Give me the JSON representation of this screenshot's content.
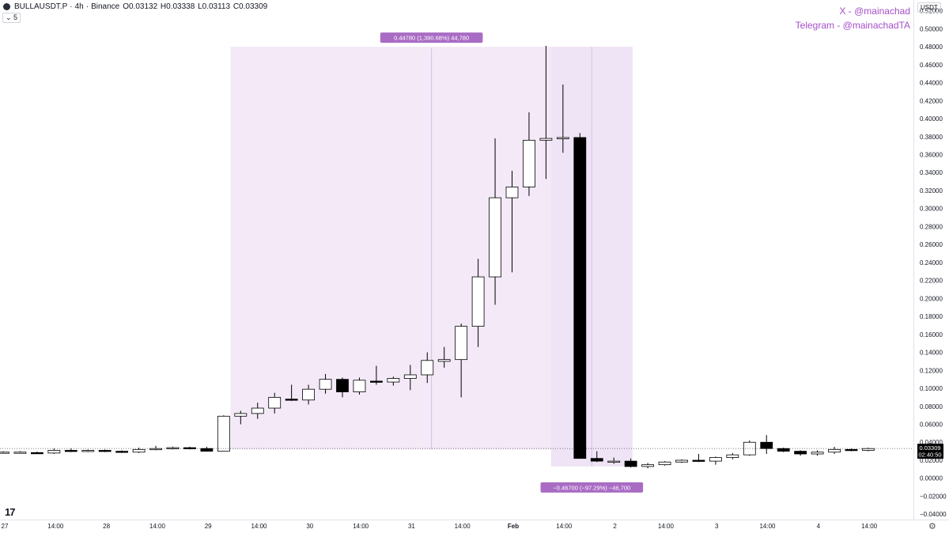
{
  "header": {
    "symbol": "BULLAUSDT.P",
    "interval": "4h",
    "exchange": "Binance",
    "open": "O0.03132",
    "high": "H0.03338",
    "low": "L0.03113",
    "close": "C0.03309",
    "collapse_label": "5"
  },
  "watermarks": {
    "x_handle": "X - @mainachad",
    "telegram": "Telegram - @mainachadTA"
  },
  "currency_label": "USDT",
  "price_tag": {
    "price": "0.03309",
    "countdown": "02:40:50"
  },
  "measure_up": {
    "label": "0.44780 (1,390.68%) 44,780"
  },
  "measure_down": {
    "label": "−0.46700 (−97.29%) −46,700"
  },
  "colors": {
    "up_body": "#ffffff",
    "down_body": "#000000",
    "wick": "#000000",
    "measure_fill": "#f3e9f7",
    "measure_tag": "#a96cc4",
    "credit": "#a44ec9"
  },
  "chart_data": {
    "type": "candlestick",
    "title": "BULLAUSDT.P · 4h · Binance",
    "ylabel": "USDT",
    "ylim": [
      -0.046,
      0.532
    ],
    "y_ticks": [
      "0.52000",
      "0.50000",
      "0.48000",
      "0.46000",
      "0.44000",
      "0.42000",
      "0.40000",
      "0.38000",
      "0.36000",
      "0.34000",
      "0.32000",
      "0.30000",
      "0.28000",
      "0.26000",
      "0.24000",
      "0.22000",
      "0.20000",
      "0.18000",
      "0.16000",
      "0.14000",
      "0.12000",
      "0.10000",
      "0.08000",
      "0.06000",
      "0.04000",
      "0.02000",
      "0.00000",
      "−0.02000",
      "−0.04000"
    ],
    "x_ticks": [
      "27",
      "14:00",
      "28",
      "14:00",
      "29",
      "14:00",
      "30",
      "14:00",
      "31",
      "14:00",
      "Feb",
      "14:00",
      "2",
      "14:00",
      "3",
      "14:00",
      "4",
      "14:00"
    ],
    "candles": [
      [
        0.029,
        0.03,
        0.028,
        0.029
      ],
      [
        0.029,
        0.03,
        0.028,
        0.029
      ],
      [
        0.0285,
        0.0295,
        0.027,
        0.028
      ],
      [
        0.028,
        0.033,
        0.027,
        0.031
      ],
      [
        0.031,
        0.033,
        0.029,
        0.03
      ],
      [
        0.03,
        0.032,
        0.029,
        0.031
      ],
      [
        0.031,
        0.032,
        0.029,
        0.03
      ],
      [
        0.03,
        0.031,
        0.028,
        0.029
      ],
      [
        0.029,
        0.034,
        0.028,
        0.032
      ],
      [
        0.032,
        0.036,
        0.031,
        0.033
      ],
      [
        0.033,
        0.035,
        0.032,
        0.034
      ],
      [
        0.034,
        0.035,
        0.032,
        0.033
      ],
      [
        0.033,
        0.035,
        0.03,
        0.03
      ],
      [
        0.03,
        0.07,
        0.03,
        0.069
      ],
      [
        0.069,
        0.075,
        0.06,
        0.072
      ],
      [
        0.072,
        0.084,
        0.066,
        0.078
      ],
      [
        0.078,
        0.095,
        0.072,
        0.09
      ],
      [
        0.088,
        0.104,
        0.086,
        0.087
      ],
      [
        0.087,
        0.104,
        0.082,
        0.099
      ],
      [
        0.099,
        0.116,
        0.094,
        0.11
      ],
      [
        0.11,
        0.112,
        0.09,
        0.096
      ],
      [
        0.096,
        0.112,
        0.093,
        0.109
      ],
      [
        0.108,
        0.125,
        0.104,
        0.107
      ],
      [
        0.107,
        0.113,
        0.103,
        0.111
      ],
      [
        0.111,
        0.126,
        0.098,
        0.115
      ],
      [
        0.115,
        0.14,
        0.106,
        0.131
      ],
      [
        0.13,
        0.146,
        0.123,
        0.132
      ],
      [
        0.132,
        0.172,
        0.09,
        0.169
      ],
      [
        0.169,
        0.244,
        0.146,
        0.224
      ],
      [
        0.224,
        0.378,
        0.193,
        0.312
      ],
      [
        0.312,
        0.342,
        0.229,
        0.324
      ],
      [
        0.324,
        0.407,
        0.314,
        0.376
      ],
      [
        0.376,
        0.481,
        0.333,
        0.378
      ],
      [
        0.378,
        0.438,
        0.362,
        0.379
      ],
      [
        0.379,
        0.384,
        0.022,
        0.022
      ],
      [
        0.022,
        0.03,
        0.018,
        0.019
      ],
      [
        0.019,
        0.023,
        0.016,
        0.019
      ],
      [
        0.019,
        0.022,
        0.012,
        0.013
      ],
      [
        0.013,
        0.017,
        0.011,
        0.015
      ],
      [
        0.015,
        0.019,
        0.014,
        0.018
      ],
      [
        0.018,
        0.021,
        0.017,
        0.02
      ],
      [
        0.02,
        0.027,
        0.018,
        0.019
      ],
      [
        0.019,
        0.024,
        0.015,
        0.023
      ],
      [
        0.023,
        0.028,
        0.021,
        0.026
      ],
      [
        0.026,
        0.042,
        0.025,
        0.04
      ],
      [
        0.04,
        0.048,
        0.027,
        0.033
      ],
      [
        0.033,
        0.034,
        0.029,
        0.03
      ],
      [
        0.03,
        0.031,
        0.025,
        0.027
      ],
      [
        0.027,
        0.031,
        0.025,
        0.029
      ],
      [
        0.029,
        0.035,
        0.027,
        0.032
      ],
      [
        0.032,
        0.033,
        0.03,
        0.031
      ],
      [
        0.031,
        0.034,
        0.03,
        0.033
      ]
    ],
    "measure_up": {
      "from": 0.032,
      "to": 0.48
    },
    "measure_down": {
      "from": 0.48,
      "to": 0.013
    },
    "current_price": 0.03309
  }
}
